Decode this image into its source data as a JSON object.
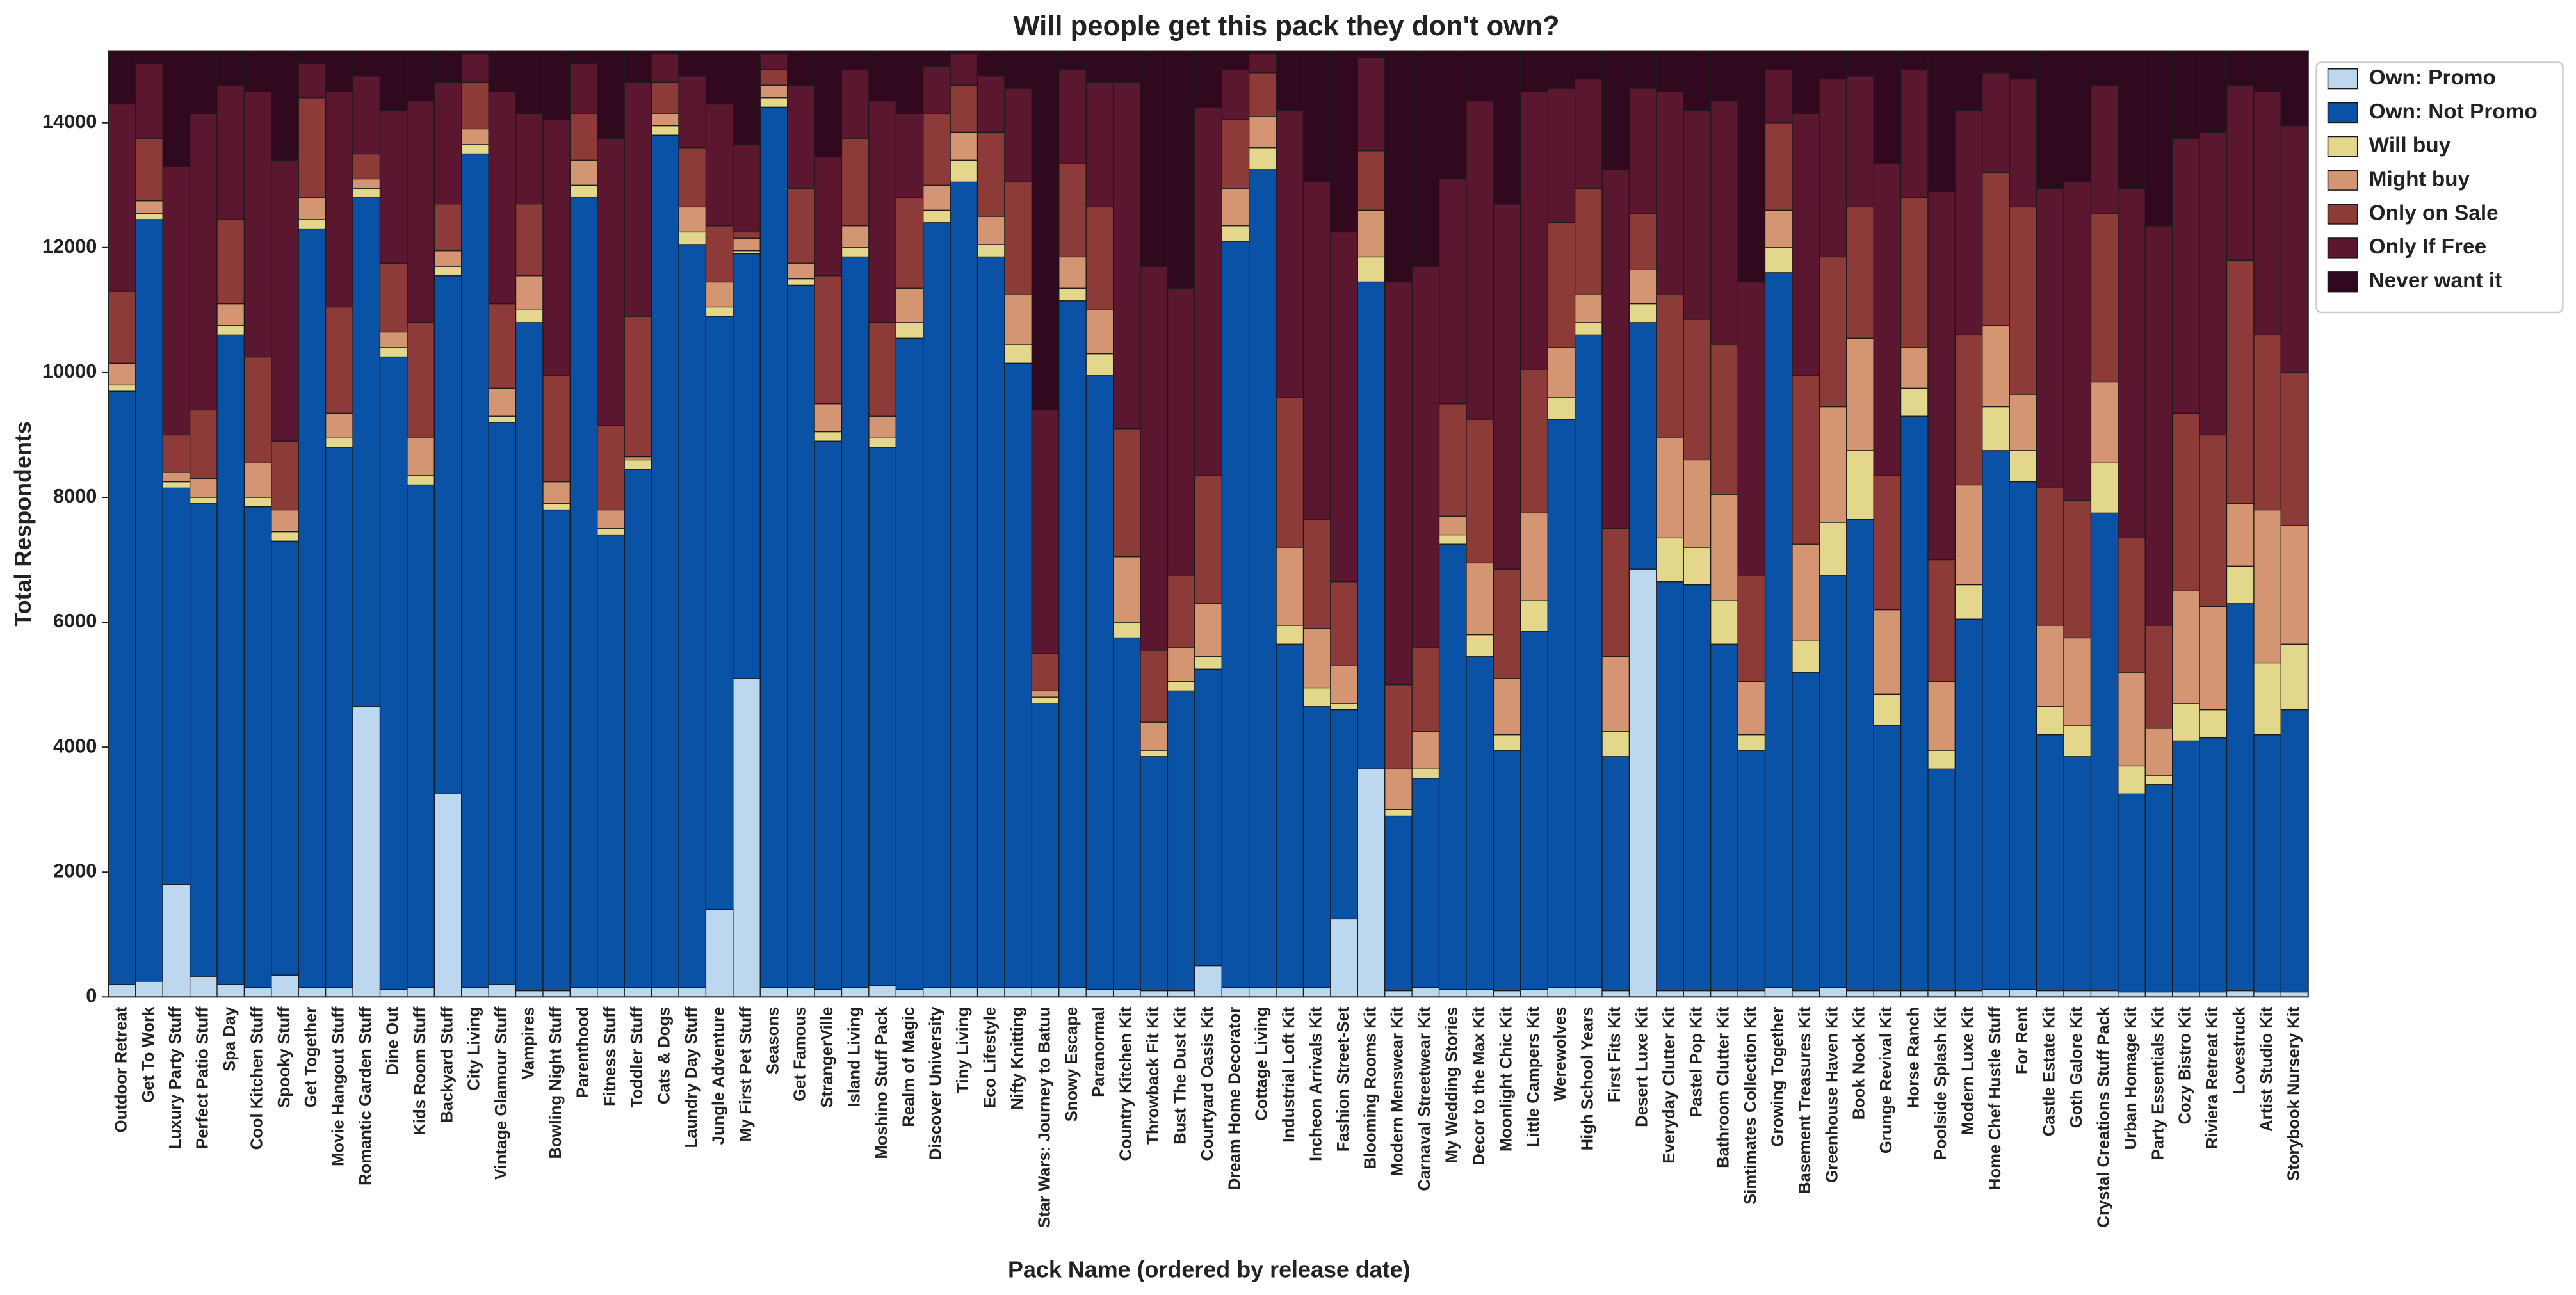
{
  "chart_data": {
    "type": "bar",
    "stacked": true,
    "title": "Will people get this pack they don't own?",
    "x_label": "Pack Name (ordered by release date)",
    "y_label": "Total Respondents",
    "legend": "outside right",
    "categories": [
      "Outdoor Retreat",
      "Get To Work",
      "Luxury Party Stuff",
      "Perfect Patio Stuff",
      "Spa Day",
      "Cool Kitchen Stuff",
      "Spooky Stuff",
      "Get Together",
      "Movie Hangout Stuff",
      "Romantic Garden Stuff",
      "Dine Out",
      "Kids Room Stuff",
      "Backyard Stuff",
      "City Living",
      "Vintage Glamour Stuff",
      "Vampires",
      "Bowling Night Stuff",
      "Parenthood",
      "Fitness Stuff",
      "Toddler Stuff",
      "Cats & Dogs",
      "Laundry Day Stuff",
      "Jungle Adventure",
      "My First Pet Stuff",
      "Seasons",
      "Get Famous",
      "StrangerVille",
      "Island Living",
      "Moshino Stuff Pack",
      "Realm of Magic",
      "Discover University",
      "Tiny Living",
      "Eco Lifestyle",
      "Nifty Knitting",
      "Star Wars: Journey to Batuu",
      "Snowy Escape",
      "Paranormal",
      "Country Kitchen Kit",
      "Throwback Fit Kit",
      "Bust The Dust Kit",
      "Courtyard Oasis Kit",
      "Dream Home Decorator",
      "Cottage Living",
      "Industrial Loft Kit",
      "Incheon Arrivals Kit",
      "Fashion Street-Set",
      "Blooming Rooms Kit",
      "Modern Menswear Kit",
      "Carnaval Streetwear Kit",
      "My Wedding Stories",
      "Decor to the Max Kit",
      "Moonlight Chic Kit",
      "Little Campers Kit",
      "Werewolves",
      "High School Years",
      "First Fits Kit",
      "Desert Luxe Kit",
      "Everyday Clutter Kit",
      "Pastel Pop Kit",
      "Bathroom Clutter Kit",
      "Simtimates Collection Kit",
      "Growing Together",
      "Basement Treasures Kit",
      "Greenhouse Haven Kit",
      "Book Nook Kit",
      "Grunge Revival Kit",
      "Horse Ranch",
      "Poolside Splash Kit",
      "Modern Luxe Kit",
      "Home Chef Hustle Stuff",
      "For Rent",
      "Castle Estate Kit",
      "Goth Galore Kit",
      "Crystal Creations Stuff Pack",
      "Urban Homage Kit",
      "Party Essentials Kit",
      "Cozy Bistro Kit",
      "Riviera Retreat Kit",
      "Lovestruck",
      "Artist Studio Kit",
      "Storybook Nursery Kit"
    ],
    "series": [
      {
        "name": "Own: Promo",
        "color": "#bdd7ee",
        "values": [
          200,
          250,
          1800,
          330,
          200,
          150,
          350,
          150,
          150,
          4650,
          120,
          150,
          3250,
          150,
          200,
          100,
          100,
          150,
          150,
          150,
          150,
          150,
          1400,
          5100,
          150,
          150,
          120,
          150,
          180,
          120,
          150,
          150,
          150,
          150,
          150,
          150,
          120,
          120,
          100,
          100,
          500,
          150,
          150,
          150,
          150,
          1250,
          3650,
          100,
          150,
          120,
          120,
          100,
          120,
          150,
          150,
          100,
          6850,
          100,
          100,
          100,
          100,
          150,
          100,
          150,
          100,
          100,
          100,
          100,
          100,
          120,
          120,
          100,
          100,
          100,
          80,
          80,
          80,
          80,
          100,
          80,
          80
        ]
      },
      {
        "name": "Own: Not Promo",
        "color": "#0a52a5",
        "values": [
          9500,
          12200,
          6350,
          7570,
          10400,
          7700,
          6950,
          12150,
          8650,
          8150,
          10130,
          8050,
          8300,
          13350,
          9000,
          10700,
          7700,
          12650,
          7250,
          8300,
          13650,
          11900,
          9500,
          6800,
          14100,
          11250,
          8780,
          11700,
          8620,
          10430,
          12250,
          12900,
          11700,
          10000,
          4550,
          11000,
          9830,
          5630,
          3750,
          4800,
          4750,
          11950,
          13100,
          5500,
          4500,
          3350,
          7800,
          2800,
          3350,
          7130,
          5330,
          3850,
          5730,
          9100,
          10450,
          3750,
          3950,
          6550,
          6500,
          5550,
          3850,
          11450,
          5100,
          6600,
          7550,
          4250,
          9200,
          3550,
          5950,
          8630,
          8130,
          4100,
          3750,
          7650,
          3170,
          3320,
          4020,
          4070,
          6200,
          4120,
          4520
        ]
      },
      {
        "name": "Will buy",
        "color": "#e2d78b",
        "values": [
          100,
          100,
          100,
          100,
          150,
          150,
          150,
          150,
          150,
          150,
          150,
          150,
          150,
          150,
          100,
          200,
          100,
          200,
          100,
          150,
          150,
          200,
          150,
          50,
          150,
          100,
          150,
          150,
          150,
          250,
          200,
          350,
          200,
          300,
          100,
          200,
          350,
          250,
          100,
          150,
          200,
          250,
          350,
          300,
          300,
          100,
          400,
          100,
          150,
          150,
          350,
          250,
          500,
          350,
          200,
          400,
          300,
          700,
          600,
          700,
          250,
          400,
          500,
          850,
          1100,
          500,
          450,
          300,
          550,
          700,
          500,
          450,
          500,
          800,
          450,
          150,
          600,
          450,
          600,
          1150,
          1050
        ]
      },
      {
        "name": "Might buy",
        "color": "#d39572",
        "values": [
          350,
          200,
          150,
          300,
          350,
          550,
          350,
          350,
          400,
          150,
          250,
          600,
          250,
          250,
          450,
          550,
          350,
          400,
          300,
          50,
          200,
          400,
          400,
          200,
          200,
          250,
          450,
          350,
          350,
          550,
          400,
          450,
          450,
          800,
          100,
          500,
          700,
          1050,
          450,
          550,
          850,
          600,
          500,
          1250,
          950,
          600,
          750,
          650,
          600,
          300,
          1150,
          900,
          1400,
          800,
          450,
          1200,
          550,
          1600,
          1400,
          1700,
          850,
          600,
          1550,
          1850,
          1800,
          1350,
          650,
          1100,
          1600,
          1300,
          900,
          1300,
          1400,
          1300,
          1500,
          750,
          1800,
          1650,
          1000,
          2450,
          1900
        ]
      },
      {
        "name": "Only on Sale",
        "color": "#8c3b38",
        "values": [
          1150,
          1000,
          600,
          1100,
          1350,
          1700,
          1100,
          1600,
          1700,
          400,
          1100,
          1850,
          750,
          750,
          1350,
          1150,
          1700,
          750,
          1350,
          2250,
          500,
          950,
          900,
          100,
          250,
          1200,
          2050,
          1400,
          1500,
          1450,
          1150,
          750,
          1350,
          1800,
          600,
          1500,
          1650,
          2050,
          1150,
          1150,
          2050,
          1100,
          700,
          2400,
          1750,
          1350,
          950,
          1350,
          1350,
          1800,
          2300,
          1750,
          2300,
          2000,
          1700,
          2050,
          900,
          2300,
          2250,
          2400,
          1700,
          1400,
          2700,
          2400,
          2100,
          2150,
          2400,
          1950,
          2400,
          2450,
          3000,
          2200,
          2200,
          2700,
          2150,
          1650,
          2850,
          2750,
          3900,
          2800,
          2450
        ]
      },
      {
        "name": "Only If Free",
        "color": "#5b1630",
        "values": [
          3000,
          1200,
          4300,
          4750,
          2150,
          4250,
          4500,
          550,
          3450,
          1250,
          2450,
          3550,
          1950,
          450,
          3400,
          1450,
          4100,
          800,
          4600,
          3750,
          450,
          1150,
          1950,
          1400,
          250,
          1650,
          1900,
          1100,
          3550,
          1350,
          750,
          500,
          900,
          1500,
          3900,
          1500,
          2000,
          5550,
          6150,
          4600,
          5900,
          800,
          300,
          4600,
          5400,
          5600,
          1500,
          6450,
          6100,
          3600,
          5100,
          5850,
          4450,
          2150,
          1750,
          5750,
          2000,
          3250,
          3350,
          3900,
          4700,
          850,
          4200,
          2850,
          2100,
          5000,
          2050,
          5900,
          3600,
          1600,
          2050,
          4800,
          5100,
          2050,
          5600,
          6400,
          4400,
          4850,
          2800,
          3900,
          3950
        ]
      },
      {
        "name": "Never want it",
        "color": "#30091f",
        "values": [
          850,
          200,
          1850,
          1000,
          550,
          650,
          1750,
          200,
          650,
          400,
          950,
          800,
          500,
          50,
          650,
          1000,
          1100,
          200,
          1400,
          500,
          50,
          400,
          850,
          1500,
          50,
          550,
          1700,
          300,
          800,
          1000,
          250,
          50,
          400,
          600,
          5750,
          300,
          500,
          500,
          3450,
          3800,
          900,
          300,
          50,
          950,
          2100,
          2900,
          100,
          3700,
          3450,
          2050,
          800,
          2450,
          650,
          600,
          450,
          1900,
          600,
          650,
          950,
          800,
          3700,
          300,
          1000,
          450,
          400,
          1800,
          300,
          2250,
          950,
          350,
          450,
          2200,
          2100,
          550,
          2200,
          2800,
          1400,
          1300,
          550,
          650,
          1200
        ]
      }
    ],
    "ylim": [
      0,
      15150
    ],
    "yticks": [
      0,
      2000,
      4000,
      6000,
      8000,
      10000,
      12000,
      14000
    ]
  }
}
